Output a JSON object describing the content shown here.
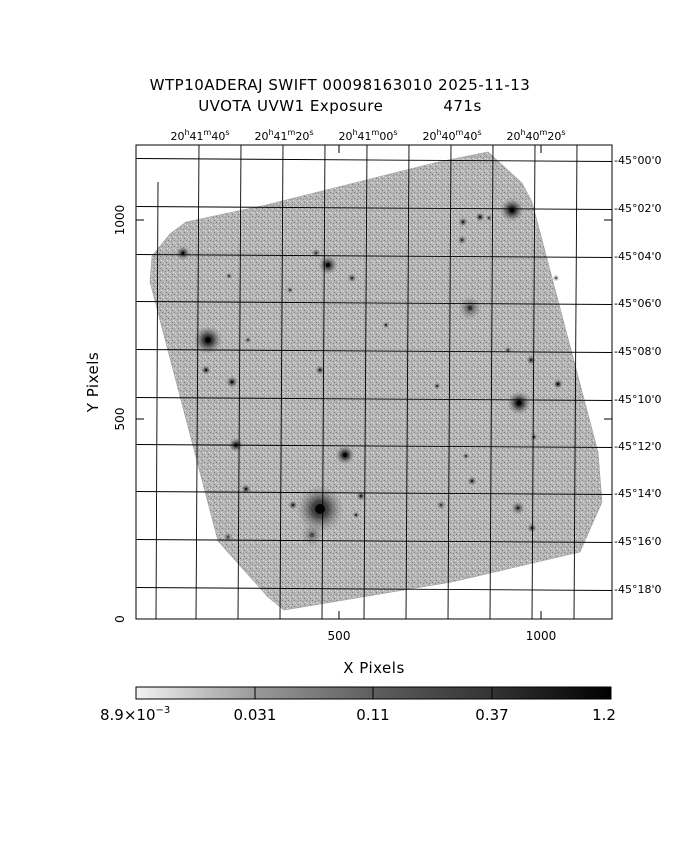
{
  "header": {
    "title_line1": "WTP10ADERAJ SWIFT 00098163010 2025-11-13",
    "title_line2_left": "UVOTA UVW1 Exposure",
    "title_line2_right": "471s"
  },
  "axes": {
    "x_title": "X Pixels",
    "y_title": "Y Pixels",
    "x_ticks": [
      "500",
      "1000"
    ],
    "y_ticks": [
      "0",
      "500",
      "1000"
    ],
    "ra_labels": [
      {
        "h": "20",
        "m": "41",
        "s": "40"
      },
      {
        "h": "20",
        "m": "41",
        "s": "20"
      },
      {
        "h": "20",
        "m": "41",
        "s": "00"
      },
      {
        "h": "20",
        "m": "40",
        "s": "40"
      },
      {
        "h": "20",
        "m": "40",
        "s": "20"
      }
    ],
    "dec_labels": [
      "-45°00'0",
      "-45°02'0",
      "-45°04'0",
      "-45°06'0",
      "-45°08'0",
      "-45°10'0",
      "-45°12'0",
      "-45°14'0",
      "-45°16'0",
      "-45°18'0"
    ]
  },
  "colorbar": {
    "labels": [
      "8.9×10",
      "0.031",
      "0.11",
      "0.37",
      "1.2"
    ],
    "first_exponent": "−3"
  }
}
